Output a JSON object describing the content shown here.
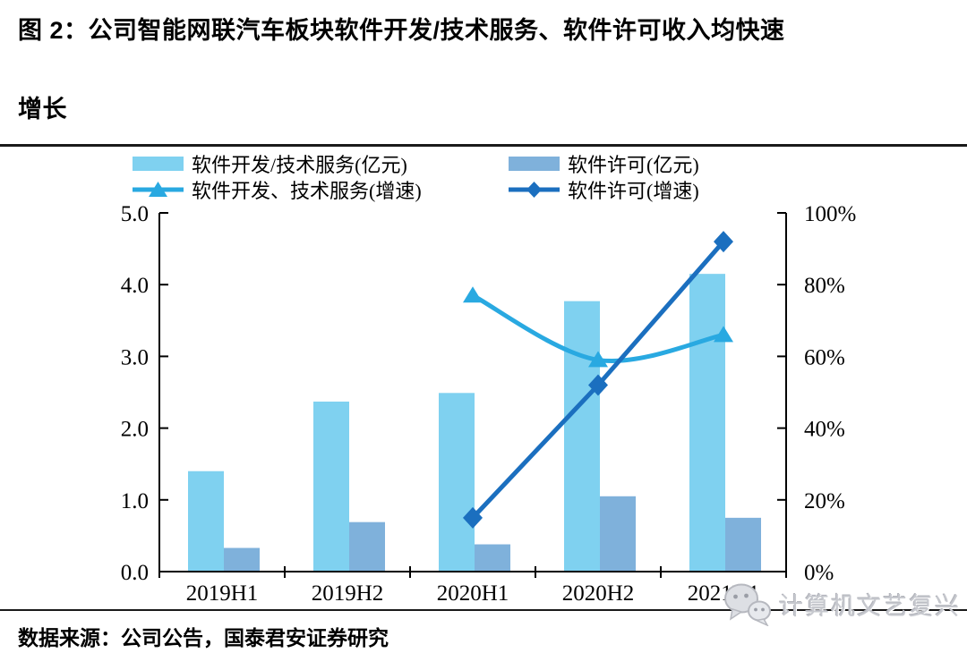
{
  "figure": {
    "title_line1": "图 2：公司智能网联汽车板块软件开发/技术服务、软件许可收入均快速",
    "title_line2": "增长",
    "source": "数据来源：公司公告，国泰君安证券研究",
    "watermark_text": "计算机文艺复兴"
  },
  "colors": {
    "bar_light": "#7FD1F0",
    "bar_steel": "#7FB1DB",
    "line_light": "#29A9E1",
    "line_dark": "#1B6FBF",
    "axis": "#000000",
    "watermark": "#C6C8CE"
  },
  "chart_data": {
    "type": "combo-bar-line",
    "categories": [
      "2019H1",
      "2019H2",
      "2020H1",
      "2020H2",
      "2021H1"
    ],
    "bar_series": [
      {
        "name": "软件开发/技术服务(亿元)",
        "axis": "left",
        "color_key": "bar_light",
        "values": [
          1.4,
          2.37,
          2.49,
          3.77,
          4.15
        ]
      },
      {
        "name": "软件许可(亿元)",
        "axis": "left",
        "color_key": "bar_steel",
        "values": [
          0.33,
          0.69,
          0.38,
          1.05,
          0.75
        ]
      }
    ],
    "line_series": [
      {
        "name": "软件开发、技术服务(增速)",
        "axis": "right",
        "color_key": "line_light",
        "marker": "triangle",
        "smooth": true,
        "values": [
          null,
          null,
          77,
          59,
          66
        ]
      },
      {
        "name": "软件许可(增速)",
        "axis": "right",
        "color_key": "line_dark",
        "marker": "diamond",
        "smooth": false,
        "values": [
          null,
          null,
          15,
          52,
          92
        ]
      }
    ],
    "left_axis": {
      "min": 0,
      "max": 5,
      "step": 1,
      "tick_labels": [
        "0.0",
        "1.0",
        "2.0",
        "3.0",
        "4.0",
        "5.0"
      ]
    },
    "right_axis": {
      "min": 0,
      "max": 100,
      "step": 20,
      "tick_labels": [
        "0%",
        "20%",
        "40%",
        "60%",
        "80%",
        "100%"
      ]
    },
    "grid": false,
    "legend_position": "top"
  }
}
